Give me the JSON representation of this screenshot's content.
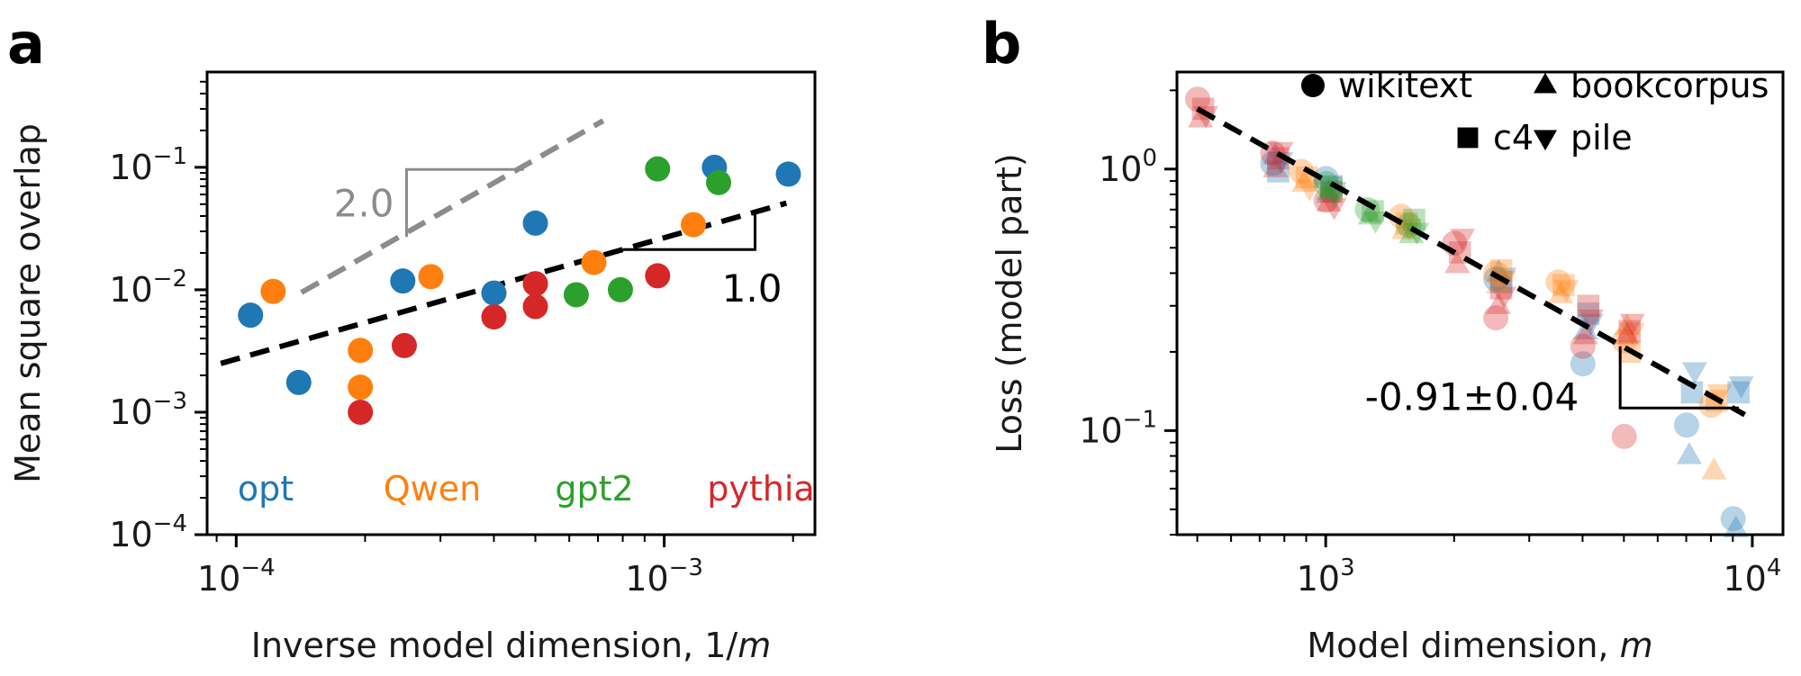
{
  "chart_data": [
    {
      "panel": "a",
      "type": "scatter",
      "xlabel_main": "Inverse model dimension, 1/",
      "xlabel_var": "m",
      "ylabel": "Mean square overlap",
      "xscale": "log",
      "yscale": "log",
      "xlim": [
        8.55e-05,
        0.00225
      ],
      "ylim": [
        0.0001,
        0.6
      ],
      "x_ticks": [
        {
          "value": 0.0001,
          "base": "10",
          "exp": "−4"
        },
        {
          "value": 0.001,
          "base": "10",
          "exp": "−3"
        }
      ],
      "y_ticks": [
        {
          "value": 0.0001,
          "base": "10",
          "exp": "−4"
        },
        {
          "value": 0.001,
          "base": "10",
          "exp": "−3"
        },
        {
          "value": 0.01,
          "base": "10",
          "exp": "−2"
        },
        {
          "value": 0.1,
          "base": "10",
          "exp": "−1"
        }
      ],
      "grid": false,
      "colors": {
        "opt": "#1f77b4",
        "Qwen": "#ff7f0e",
        "gpt2": "#2ca02c",
        "pythia": "#d62728"
      },
      "series": [
        {
          "name": "opt",
          "points": [
            [
              0.000108,
              0.0062
            ],
            [
              0.00014,
              0.00175
            ],
            [
              0.000245,
              0.0118
            ],
            [
              0.0004,
              0.0094
            ],
            [
              0.0005,
              0.035
            ],
            [
              0.00131,
              0.1
            ],
            [
              0.00195,
              0.088
            ]
          ]
        },
        {
          "name": "Qwen",
          "points": [
            [
              0.000122,
              0.0097
            ],
            [
              0.000195,
              0.0032
            ],
            [
              0.000195,
              0.0016
            ],
            [
              0.000285,
              0.0128
            ],
            [
              0.0005,
              0.0112
            ],
            [
              0.000685,
              0.0167
            ],
            [
              0.00117,
              0.034
            ]
          ]
        },
        {
          "name": "gpt2",
          "points": [
            [
              0.000623,
              0.0091
            ],
            [
              0.00079,
              0.01
            ],
            [
              0.000965,
              0.097
            ],
            [
              0.00134,
              0.075
            ]
          ]
        },
        {
          "name": "pythia",
          "points": [
            [
              0.000195,
              0.001
            ],
            [
              0.000247,
              0.0035
            ],
            [
              0.0004,
              0.006
            ],
            [
              0.0005,
              0.0073
            ],
            [
              0.0005,
              0.0112
            ],
            [
              0.000965,
              0.013
            ]
          ]
        }
      ],
      "fit_lines": [
        {
          "slope": 2.0,
          "x0": 0.000142,
          "y0": 0.0095,
          "x1": 0.00072,
          "y1": 0.24,
          "color": "#8c8c8c"
        },
        {
          "slope": 1.0,
          "x0": 9.2e-05,
          "y0": 0.0025,
          "x1": 0.00193,
          "y1": 0.051,
          "color": "#000000"
        }
      ],
      "slope_markers": [
        {
          "label": "2.0",
          "corner_x": 0.00025,
          "corner_y": 0.096,
          "x_end": 0.00047,
          "y_low": 0.027,
          "color": "#8c8c8c"
        },
        {
          "label": "1.0",
          "corner_x": 0.00163,
          "corner_y": 0.0213,
          "x_start": 0.0008,
          "y_high": 0.0435,
          "color": "#000000"
        }
      ],
      "annotations": [
        "2.0",
        "1.0"
      ],
      "legend": [
        "opt",
        "Qwen",
        "gpt2",
        "pythia"
      ],
      "legend_position": "bottom"
    },
    {
      "panel": "b",
      "type": "scatter",
      "xlabel_main": "Model dimension, ",
      "xlabel_var": "m",
      "ylabel": "Loss (model part)",
      "xscale": "log",
      "yscale": "log",
      "xlim": [
        448,
        11800
      ],
      "ylim": [
        0.04,
        2.35
      ],
      "x_ticks": [
        {
          "value": 1000,
          "base": "10",
          "exp": "3"
        },
        {
          "value": 10000,
          "base": "10",
          "exp": "4"
        }
      ],
      "y_ticks": [
        {
          "value": 0.1,
          "base": "10",
          "exp": "−1"
        },
        {
          "value": 1,
          "base": "10",
          "exp": "0"
        }
      ],
      "grid": false,
      "legend": [
        {
          "marker": "circle",
          "label": "wikitext"
        },
        {
          "marker": "triangle-up",
          "label": "bookcorpus"
        },
        {
          "marker": "square",
          "label": "c4"
        },
        {
          "marker": "triangle-down",
          "label": "pile"
        }
      ],
      "legend_position": "top-right",
      "fit": {
        "slope": -0.91,
        "x0": 500,
        "y0": 1.7,
        "x1": 9600,
        "y1": 0.115
      },
      "slope_marker": {
        "label": "-0.91±0.04",
        "corner_x": 4900,
        "corner_y": 0.122,
        "x_end": 9300,
        "y_high": 0.21
      },
      "clusters": [
        {
          "x": 512,
          "color": "#d62728",
          "points": [
            [
              "circle",
              1.85
            ],
            [
              "triangle-up",
              1.55
            ],
            [
              "square",
              1.7
            ],
            [
              "triangle-down",
              1.62
            ]
          ]
        },
        {
          "x": 768,
          "color": "#1f77b4",
          "points": [
            [
              "circle",
              1.05
            ],
            [
              "triangle-up",
              1.12
            ],
            [
              "square",
              0.98
            ],
            [
              "triangle-down",
              1.08
            ]
          ]
        },
        {
          "x": 768,
          "color": "#d62728",
          "points": [
            [
              "circle",
              1.15
            ],
            [
              "triangle-up",
              1.0
            ],
            [
              "square",
              1.1
            ],
            [
              "triangle-down",
              1.18
            ]
          ]
        },
        {
          "x": 896,
          "color": "#ff7f0e",
          "points": [
            [
              "circle",
              0.98
            ],
            [
              "triangle-up",
              0.88
            ],
            [
              "square",
              0.93
            ],
            [
              "triangle-down",
              0.85
            ]
          ]
        },
        {
          "x": 1024,
          "color": "#1f77b4",
          "points": [
            [
              "circle",
              0.92
            ],
            [
              "triangle-up",
              0.8
            ],
            [
              "square",
              0.86
            ],
            [
              "triangle-down",
              0.83
            ]
          ]
        },
        {
          "x": 1024,
          "color": "#d62728",
          "points": [
            [
              "circle",
              0.76
            ],
            [
              "triangle-up",
              0.74
            ],
            [
              "square",
              0.82
            ],
            [
              "triangle-down",
              0.72
            ]
          ]
        },
        {
          "x": 1024,
          "color": "#2ca02c",
          "points": [
            [
              "circle",
              0.88
            ],
            [
              "triangle-up",
              0.82
            ],
            [
              "square",
              0.85
            ],
            [
              "triangle-down",
              0.8
            ]
          ]
        },
        {
          "x": 1280,
          "color": "#2ca02c",
          "points": [
            [
              "circle",
              0.7
            ],
            [
              "triangle-up",
              0.66
            ],
            [
              "square",
              0.69
            ],
            [
              "triangle-down",
              0.64
            ]
          ]
        },
        {
          "x": 1536,
          "color": "#ff7f0e",
          "points": [
            [
              "circle",
              0.66
            ],
            [
              "triangle-up",
              0.58
            ],
            [
              "square",
              0.62
            ],
            [
              "triangle-down",
              0.6
            ]
          ]
        },
        {
          "x": 1600,
          "color": "#2ca02c",
          "points": [
            [
              "circle",
              0.61
            ],
            [
              "triangle-up",
              0.56
            ],
            [
              "square",
              0.64
            ],
            [
              "triangle-down",
              0.58
            ]
          ]
        },
        {
          "x": 2048,
          "color": "#d62728",
          "points": [
            [
              "circle",
              0.52
            ],
            [
              "triangle-up",
              0.43
            ],
            [
              "square",
              0.48
            ],
            [
              "triangle-down",
              0.55
            ]
          ]
        },
        {
          "x": 2560,
          "color": "#d62728",
          "points": [
            [
              "circle",
              0.27
            ],
            [
              "triangle-up",
              0.3
            ],
            [
              "square",
              0.35
            ],
            [
              "triangle-down",
              0.33
            ]
          ]
        },
        {
          "x": 2560,
          "color": "#1f77b4",
          "points": [
            [
              "circle",
              0.38
            ],
            [
              "triangle-up",
              0.4
            ],
            [
              "square",
              0.37
            ],
            [
              "triangle-down",
              0.39
            ]
          ]
        },
        {
          "x": 2560,
          "color": "#ff7f0e",
          "points": [
            [
              "circle",
              0.4
            ],
            [
              "triangle-up",
              0.36
            ],
            [
              "square",
              0.41
            ],
            [
              "triangle-down",
              0.38
            ]
          ]
        },
        {
          "x": 3584,
          "color": "#ff7f0e",
          "points": [
            [
              "circle",
              0.37
            ],
            [
              "triangle-up",
              0.33
            ],
            [
              "square",
              0.36
            ],
            [
              "triangle-down",
              0.35
            ]
          ]
        },
        {
          "x": 4096,
          "color": "#1f77b4",
          "points": [
            [
              "circle",
              0.18
            ],
            [
              "triangle-up",
              0.24
            ],
            [
              "square",
              0.28
            ],
            [
              "triangle-down",
              0.26
            ]
          ]
        },
        {
          "x": 4096,
          "color": "#d62728",
          "points": [
            [
              "circle",
              0.21
            ],
            [
              "triangle-up",
              0.23
            ],
            [
              "square",
              0.3
            ],
            [
              "triangle-down",
              0.27
            ]
          ]
        },
        {
          "x": 5120,
          "color": "#ff7f0e",
          "points": [
            [
              "circle",
              0.22
            ],
            [
              "triangle-up",
              0.25
            ],
            [
              "square",
              0.2
            ],
            [
              "triangle-down",
              0.24
            ]
          ]
        },
        {
          "x": 5120,
          "color": "#d62728",
          "points": [
            [
              "circle",
              0.095
            ],
            [
              "triangle-up",
              0.23
            ],
            [
              "square",
              0.24
            ],
            [
              "triangle-down",
              0.26
            ]
          ]
        },
        {
          "x": 7168,
          "color": "#1f77b4",
          "points": [
            [
              "circle",
              0.105
            ],
            [
              "triangle-up",
              0.08
            ],
            [
              "square",
              0.14
            ],
            [
              "triangle-down",
              0.17
            ]
          ]
        },
        {
          "x": 8192,
          "color": "#ff7f0e",
          "points": [
            [
              "circle",
              0.125
            ],
            [
              "triangle-up",
              0.07
            ],
            [
              "square",
              0.13
            ],
            [
              "triangle-down",
              0.14
            ]
          ]
        },
        {
          "x": 9216,
          "color": "#1f77b4",
          "points": [
            [
              "circle",
              0.046
            ],
            [
              "triangle-up",
              0.042
            ],
            [
              "square",
              0.14
            ],
            [
              "triangle-down",
              0.15
            ]
          ]
        }
      ]
    }
  ]
}
